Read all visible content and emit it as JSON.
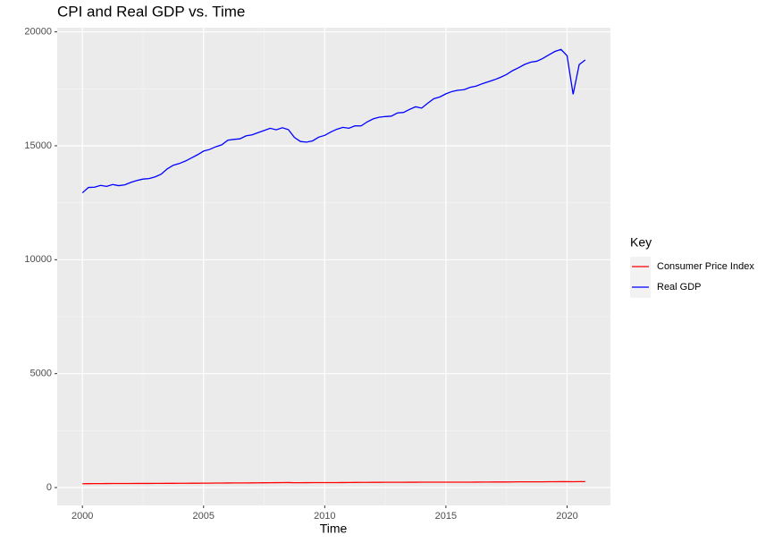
{
  "chart_data": {
    "type": "line",
    "title": "CPI and Real GDP vs. Time",
    "x_label": "Time",
    "legend_title": "Key",
    "legend_position": "right",
    "grid": true,
    "x": [
      2000,
      2000.25,
      2000.5,
      2000.75,
      2001,
      2001.25,
      2001.5,
      2001.75,
      2002,
      2002.25,
      2002.5,
      2002.75,
      2003,
      2003.25,
      2003.5,
      2003.75,
      2004,
      2004.25,
      2004.5,
      2004.75,
      2005,
      2005.25,
      2005.5,
      2005.75,
      2006,
      2006.25,
      2006.5,
      2006.75,
      2007,
      2007.25,
      2007.5,
      2007.75,
      2008,
      2008.25,
      2008.5,
      2008.75,
      2009,
      2009.25,
      2009.5,
      2009.75,
      2010,
      2010.25,
      2010.5,
      2010.75,
      2011,
      2011.25,
      2011.5,
      2011.75,
      2012,
      2012.25,
      2012.5,
      2012.75,
      2013,
      2013.25,
      2013.5,
      2013.75,
      2014,
      2014.25,
      2014.5,
      2014.75,
      2015,
      2015.25,
      2015.5,
      2015.75,
      2016,
      2016.25,
      2016.5,
      2016.75,
      2017,
      2017.25,
      2017.5,
      2017.75,
      2018,
      2018.25,
      2018.5,
      2018.75,
      2019,
      2019.25,
      2019.5,
      2019.75,
      2020,
      2020.25,
      2020.5,
      2020.75
    ],
    "series": [
      {
        "name": "Consumer Price Index",
        "color": "#ff0000",
        "values": [
          169,
          171,
          173,
          174,
          176,
          178,
          178,
          178,
          178,
          180,
          181,
          181,
          183,
          183,
          185,
          185,
          187,
          189,
          190,
          191,
          192,
          194,
          197,
          198,
          200,
          203,
          203,
          202,
          205,
          208,
          209,
          211,
          214,
          218,
          219,
          212,
          212,
          214,
          216,
          217,
          217,
          217,
          218,
          219,
          222,
          225,
          227,
          227,
          229,
          229,
          231,
          231,
          232,
          232,
          234,
          234,
          236,
          237,
          238,
          236,
          236,
          237,
          238,
          238,
          238,
          240,
          241,
          242,
          244,
          244,
          245,
          247,
          250,
          251,
          252,
          252,
          253,
          256,
          256,
          258,
          259,
          256,
          260,
          261
        ]
      },
      {
        "name": "Real GDP",
        "color": "#0000ff",
        "values": [
          12935,
          13171,
          13183,
          13262,
          13219,
          13301,
          13249,
          13285,
          13394,
          13478,
          13539,
          13560,
          13634,
          13752,
          13985,
          14146,
          14221,
          14330,
          14465,
          14606,
          14767,
          14839,
          14956,
          15041,
          15244,
          15281,
          15305,
          15434,
          15479,
          15578,
          15672,
          15767,
          15702,
          15792,
          15710,
          15367,
          15187,
          15162,
          15216,
          15380,
          15457,
          15606,
          15726,
          15808,
          15770,
          15877,
          15871,
          16048,
          16180,
          16254,
          16283,
          16301,
          16441,
          16464,
          16595,
          16712,
          16654,
          16868,
          17065,
          17144,
          17280,
          17381,
          17437,
          17462,
          17566,
          17619,
          17724,
          17812,
          17897,
          18003,
          18126,
          18297,
          18425,
          18571,
          18668,
          18711,
          18834,
          18993,
          19140,
          19228,
          18952,
          17259,
          18561,
          18768
        ]
      }
    ],
    "xlim": [
      1998.96,
      2021.79
    ],
    "xticks": [
      2000,
      2005,
      2010,
      2015,
      2020
    ],
    "ylim": [
      -784,
      20181
    ],
    "yticks": [
      0,
      5000,
      10000,
      15000,
      20000
    ]
  }
}
